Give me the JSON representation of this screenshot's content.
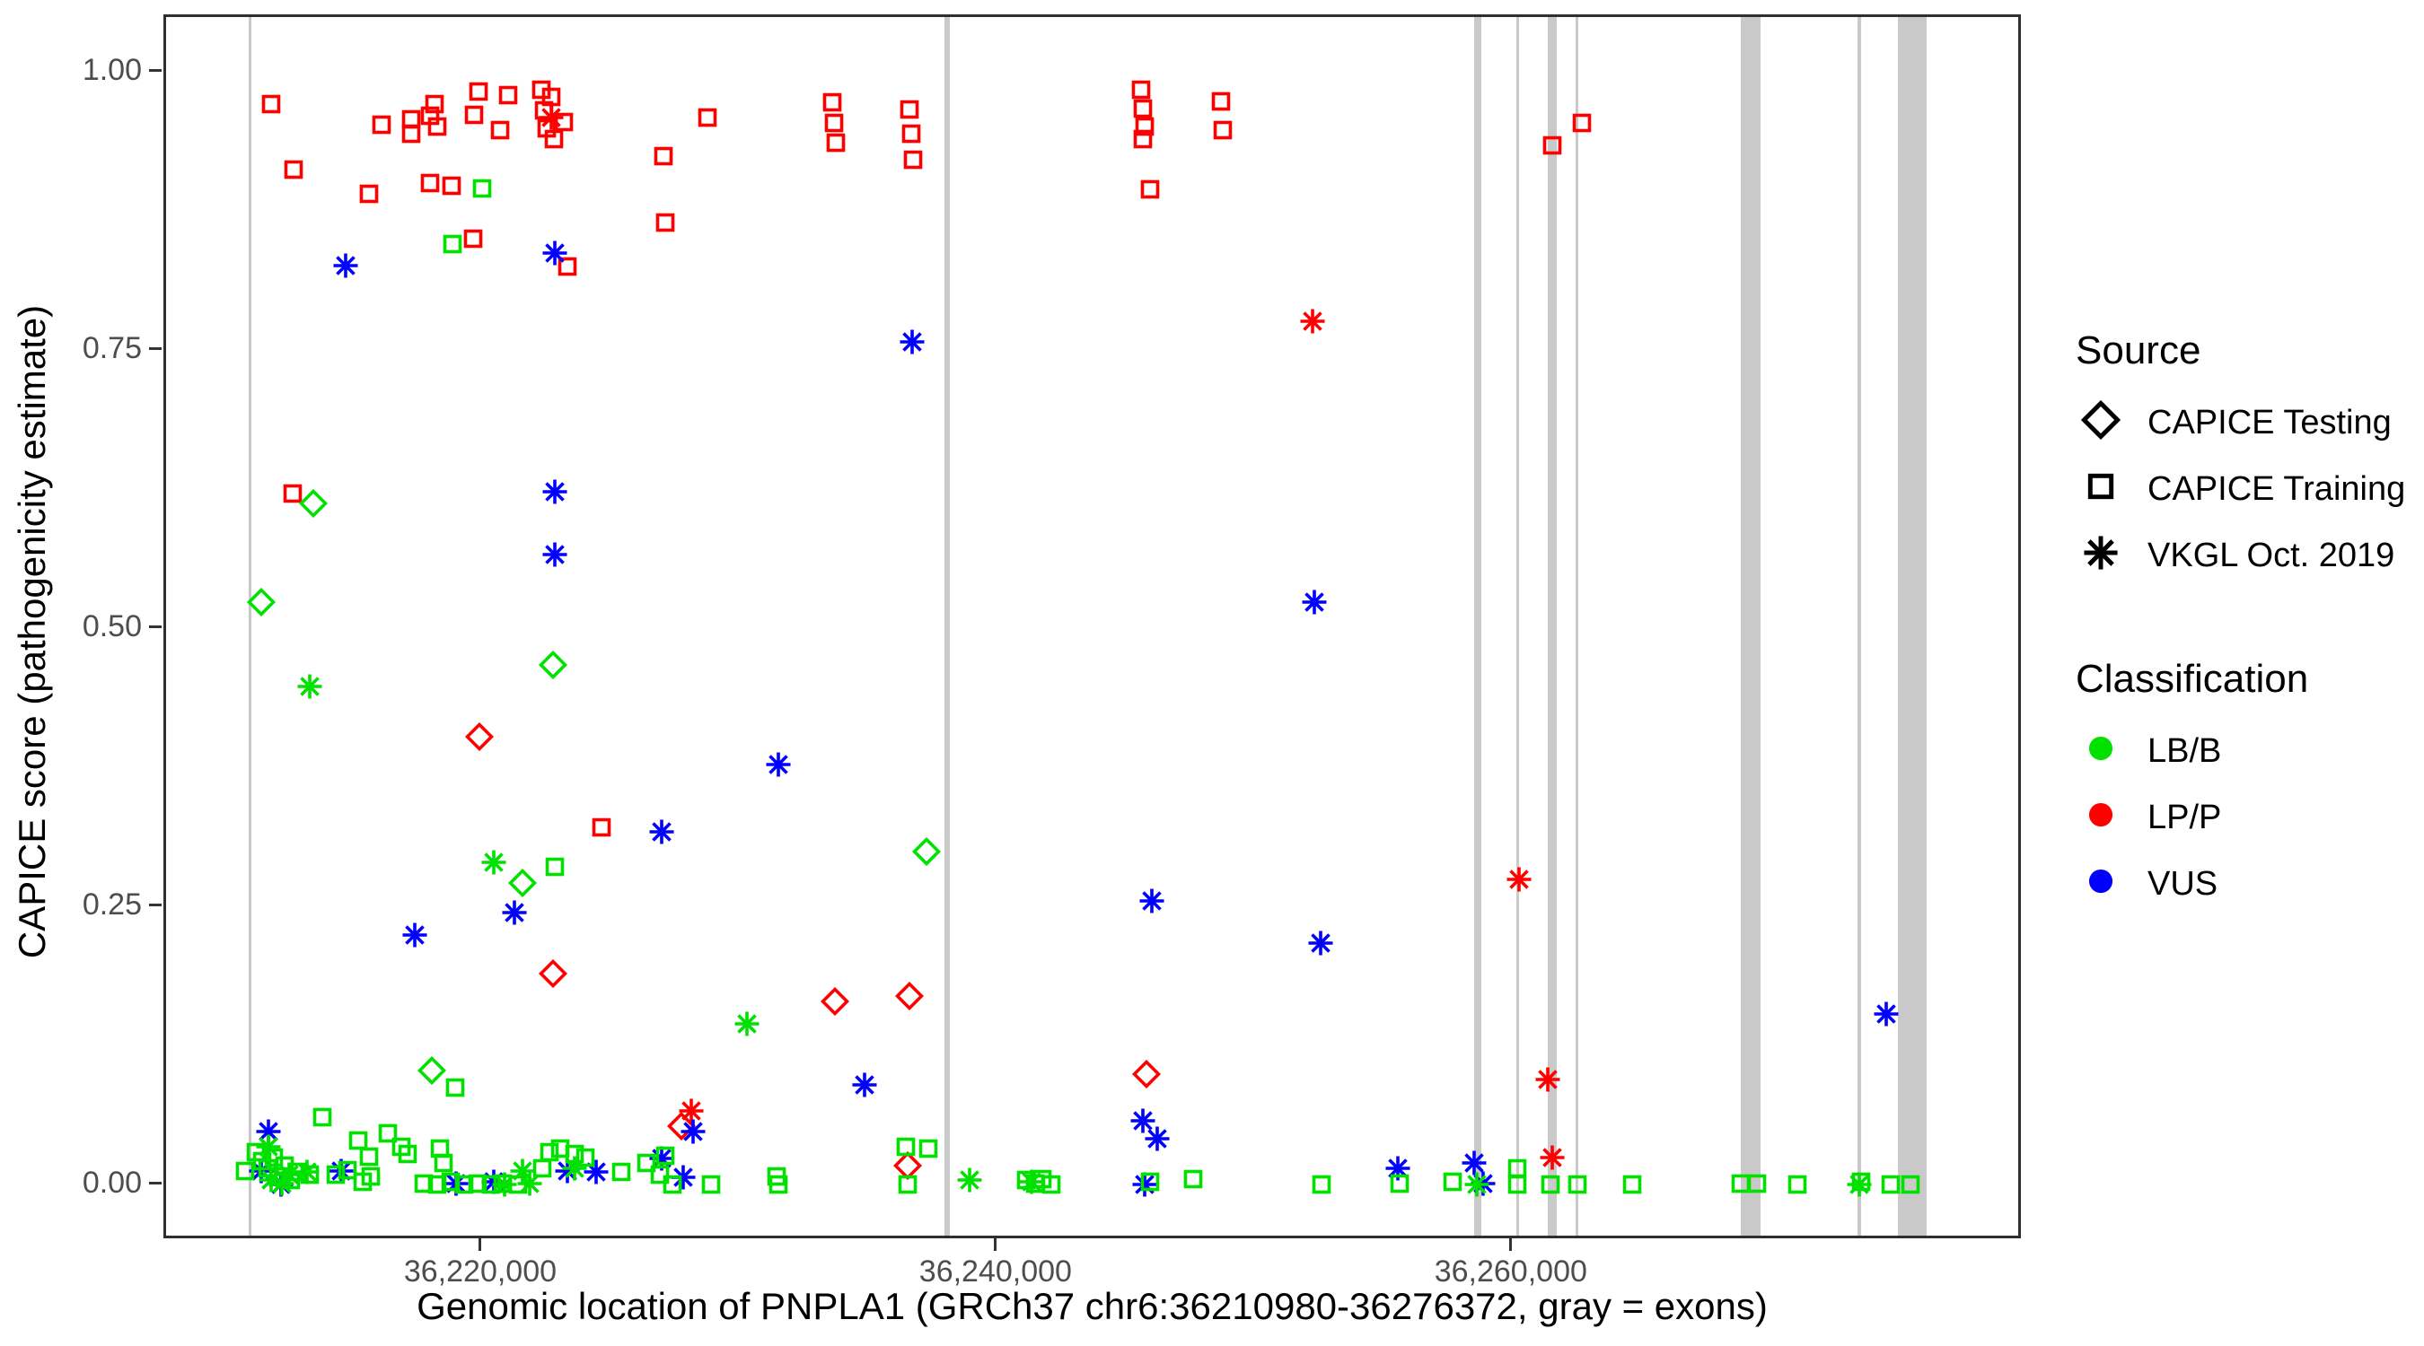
{
  "legend": {
    "source_title": "Source",
    "classification_title": "Classification"
  },
  "chart_data": {
    "type": "scatter",
    "title": "",
    "xlabel": "Genomic location of PNPLA1 (GRCh37 chr6:36210980-36276372, gray = exons)",
    "ylabel": "CAPICE score (pathogenicity estimate)",
    "grid": "off",
    "legend_position": "right",
    "x_range": [
      36207700,
      36279800
    ],
    "y_range": [
      0.0,
      1.0
    ],
    "y_expansion": 0.05,
    "x_ticks": [
      {
        "value": 36220000,
        "label": "36,220,000"
      },
      {
        "value": 36240000,
        "label": "36,240,000"
      },
      {
        "value": 36260000,
        "label": "36,260,000"
      }
    ],
    "y_ticks": [
      {
        "value": 1.0,
        "label": "1.00"
      },
      {
        "value": 0.75,
        "label": "0.75"
      },
      {
        "value": 0.5,
        "label": "0.50"
      },
      {
        "value": 0.25,
        "label": "0.25"
      },
      {
        "value": 0.0,
        "label": "0.00"
      }
    ],
    "sources": {
      "testing": {
        "label": "CAPICE Testing",
        "marker": "diamond"
      },
      "training": {
        "label": "CAPICE Training",
        "marker": "square"
      },
      "vkgl": {
        "label": "VKGL Oct. 2019",
        "marker": "asterisk"
      }
    },
    "classifications": {
      "lbb": {
        "label": "LB/B",
        "color": "#00e100"
      },
      "lpp": {
        "label": "LP/P",
        "color": "#ff0000"
      },
      "vus": {
        "label": "VUS",
        "color": "#0000ff"
      }
    },
    "exon_color": "#c9c9c9",
    "exons": [
      [
        36210950,
        36211060
      ],
      [
        36237950,
        36238160
      ],
      [
        36258540,
        36258820
      ],
      [
        36260160,
        36260260
      ],
      [
        36261400,
        36261740
      ],
      [
        36262470,
        36262570
      ],
      [
        36268870,
        36269630
      ],
      [
        36273420,
        36273530
      ],
      [
        36274980,
        36276100
      ]
    ],
    "points": [
      [
        36211790,
        0.972,
        "training",
        "lpp"
      ],
      [
        36212660,
        0.913,
        "training",
        "lpp"
      ],
      [
        36215580,
        0.891,
        "training",
        "lpp"
      ],
      [
        36216070,
        0.953,
        "training",
        "lpp"
      ],
      [
        36217220,
        0.958,
        "training",
        "lpp"
      ],
      [
        36217230,
        0.945,
        "training",
        "lpp"
      ],
      [
        36217950,
        0.961,
        "training",
        "lpp"
      ],
      [
        36218120,
        0.972,
        "training",
        "lpp"
      ],
      [
        36218230,
        0.952,
        "training",
        "lpp"
      ],
      [
        36219650,
        0.962,
        "training",
        "lpp"
      ],
      [
        36219830,
        0.983,
        "training",
        "lpp"
      ],
      [
        36220970,
        0.98,
        "training",
        "lpp"
      ],
      [
        36220660,
        0.948,
        "training",
        "lpp"
      ],
      [
        36222260,
        0.985,
        "training",
        "lpp"
      ],
      [
        36222640,
        0.978,
        "training",
        "lpp"
      ],
      [
        36222360,
        0.966,
        "training",
        "lpp"
      ],
      [
        36222470,
        0.95,
        "training",
        "lpp"
      ],
      [
        36223130,
        0.956,
        "training",
        "lpp"
      ],
      [
        36222750,
        0.94,
        "training",
        "lpp"
      ],
      [
        36217960,
        0.901,
        "training",
        "lpp"
      ],
      [
        36218780,
        0.898,
        "training",
        "lpp"
      ],
      [
        36219620,
        0.851,
        "training",
        "lpp"
      ],
      [
        36223270,
        0.826,
        "training",
        "lpp"
      ],
      [
        36226990,
        0.925,
        "training",
        "lpp"
      ],
      [
        36227060,
        0.865,
        "training",
        "lpp"
      ],
      [
        36228700,
        0.96,
        "training",
        "lpp"
      ],
      [
        36233560,
        0.973,
        "training",
        "lpp"
      ],
      [
        36233630,
        0.955,
        "training",
        "lpp"
      ],
      [
        36233700,
        0.937,
        "training",
        "lpp"
      ],
      [
        36236560,
        0.967,
        "training",
        "lpp"
      ],
      [
        36236620,
        0.945,
        "training",
        "lpp"
      ],
      [
        36236690,
        0.922,
        "training",
        "lpp"
      ],
      [
        36245530,
        0.985,
        "training",
        "lpp"
      ],
      [
        36245600,
        0.968,
        "training",
        "lpp"
      ],
      [
        36245670,
        0.952,
        "training",
        "lpp"
      ],
      [
        36245620,
        0.94,
        "training",
        "lpp"
      ],
      [
        36248660,
        0.974,
        "training",
        "lpp"
      ],
      [
        36248730,
        0.948,
        "training",
        "lpp"
      ],
      [
        36245880,
        0.895,
        "training",
        "lpp"
      ],
      [
        36261490,
        0.935,
        "training",
        "lpp"
      ],
      [
        36262640,
        0.955,
        "training",
        "lpp"
      ],
      [
        36212630,
        0.622,
        "training",
        "lpp"
      ],
      [
        36224590,
        0.322,
        "training",
        "lpp"
      ],
      [
        36219970,
        0.896,
        "training",
        "lbb"
      ],
      [
        36218820,
        0.846,
        "training",
        "lbb"
      ],
      [
        36222780,
        0.286,
        "training",
        "lbb"
      ],
      [
        36213430,
        0.613,
        "testing",
        "lbb"
      ],
      [
        36211410,
        0.524,
        "testing",
        "lbb"
      ],
      [
        36222710,
        0.468,
        "testing",
        "lbb"
      ],
      [
        36237220,
        0.3,
        "testing",
        "lbb"
      ],
      [
        36221530,
        0.272,
        "testing",
        "lbb"
      ],
      [
        36218020,
        0.103,
        "testing",
        "lbb"
      ],
      [
        36219860,
        0.403,
        "testing",
        "lpp"
      ],
      [
        36222710,
        0.19,
        "testing",
        "lpp"
      ],
      [
        36233670,
        0.165,
        "testing",
        "lpp"
      ],
      [
        36236560,
        0.17,
        "testing",
        "lpp"
      ],
      [
        36245770,
        0.1,
        "testing",
        "lpp"
      ],
      [
        36227690,
        0.053,
        "testing",
        "lpp"
      ],
      [
        36236490,
        0.018,
        "testing",
        "lpp"
      ],
      [
        36222640,
        0.96,
        "vkgl",
        "lpp"
      ],
      [
        36252210,
        0.777,
        "vkgl",
        "lpp"
      ],
      [
        36260210,
        0.275,
        "vkgl",
        "lpp"
      ],
      [
        36261320,
        0.095,
        "vkgl",
        "lpp"
      ],
      [
        36228070,
        0.067,
        "vkgl",
        "lpp"
      ],
      [
        36261490,
        0.025,
        "vkgl",
        "lpp"
      ],
      [
        36214680,
        0.827,
        "vkgl",
        "vus"
      ],
      [
        36222780,
        0.838,
        "vkgl",
        "vus"
      ],
      [
        36222780,
        0.623,
        "vkgl",
        "vus"
      ],
      [
        36222790,
        0.567,
        "vkgl",
        "vus"
      ],
      [
        36226920,
        0.318,
        "vkgl",
        "vus"
      ],
      [
        36231480,
        0.378,
        "vkgl",
        "vus"
      ],
      [
        36236660,
        0.758,
        "vkgl",
        "vus"
      ],
      [
        36252280,
        0.524,
        "vkgl",
        "vus"
      ],
      [
        36252520,
        0.218,
        "vkgl",
        "vus"
      ],
      [
        36245980,
        0.256,
        "vkgl",
        "vus"
      ],
      [
        36274470,
        0.154,
        "vkgl",
        "vus"
      ],
      [
        36234820,
        0.09,
        "vkgl",
        "vus"
      ],
      [
        36217360,
        0.225,
        "vkgl",
        "vus"
      ],
      [
        36221220,
        0.245,
        "vkgl",
        "vus"
      ],
      [
        36245600,
        0.058,
        "vkgl",
        "vus"
      ],
      [
        36246160,
        0.042,
        "vkgl",
        "vus"
      ],
      [
        36255510,
        0.015,
        "vkgl",
        "vus"
      ],
      [
        36258470,
        0.02,
        "vkgl",
        "vus"
      ],
      [
        36228170,
        0.048,
        "vkgl",
        "vus"
      ],
      [
        36227760,
        0.007,
        "vkgl",
        "vus"
      ],
      [
        36211680,
        0.048,
        "vkgl",
        "vus"
      ],
      [
        36211380,
        0.013,
        "vkgl",
        "vus"
      ],
      [
        36212170,
        0.001,
        "vkgl",
        "vus"
      ],
      [
        36214500,
        0.013,
        "vkgl",
        "vus"
      ],
      [
        36218960,
        0.002,
        "vkgl",
        "vus"
      ],
      [
        36220420,
        0.003,
        "vkgl",
        "vus"
      ],
      [
        36223270,
        0.013,
        "vkgl",
        "vus"
      ],
      [
        36224380,
        0.012,
        "vkgl",
        "vus"
      ],
      [
        36226920,
        0.024,
        "vkgl",
        "vus"
      ],
      [
        36245670,
        0.001,
        "vkgl",
        "vus"
      ],
      [
        36258820,
        0.002,
        "vkgl",
        "vus"
      ],
      [
        36213290,
        0.448,
        "vkgl",
        "lbb"
      ],
      [
        36220420,
        0.29,
        "vkgl",
        "lbb"
      ],
      [
        36230230,
        0.145,
        "vkgl",
        "lbb"
      ],
      [
        36211680,
        0.035,
        "vkgl",
        "lbb"
      ],
      [
        36211790,
        0.005,
        "vkgl",
        "lbb"
      ],
      [
        36212210,
        0.002,
        "vkgl",
        "lbb"
      ],
      [
        36212480,
        0.01,
        "vkgl",
        "lbb"
      ],
      [
        36213180,
        0.012,
        "vkgl",
        "lbb"
      ],
      [
        36221530,
        0.013,
        "vkgl",
        "lbb"
      ],
      [
        36223550,
        0.015,
        "vkgl",
        "lbb"
      ],
      [
        36220830,
        0.001,
        "vkgl",
        "lbb"
      ],
      [
        36221810,
        0.002,
        "vkgl",
        "lbb"
      ],
      [
        36238890,
        0.005,
        "vkgl",
        "lbb"
      ],
      [
        36241290,
        0.003,
        "vkgl",
        "lbb"
      ],
      [
        36258570,
        0.001,
        "vkgl",
        "lbb"
      ],
      [
        36273420,
        0.001,
        "vkgl",
        "lbb"
      ],
      [
        36213770,
        0.061,
        "training",
        "lbb"
      ],
      [
        36214300,
        0.01,
        "training",
        "lbb"
      ],
      [
        36216310,
        0.047,
        "training",
        "lbb"
      ],
      [
        36216840,
        0.035,
        "training",
        "lbb"
      ],
      [
        36217080,
        0.028,
        "training",
        "lbb"
      ],
      [
        36218330,
        0.033,
        "training",
        "lbb"
      ],
      [
        36218470,
        0.02,
        "training",
        "lbb"
      ],
      [
        36215580,
        0.026,
        "training",
        "lbb"
      ],
      [
        36218920,
        0.088,
        "training",
        "lbb"
      ],
      [
        36210750,
        0.013,
        "training",
        "lbb"
      ],
      [
        36211200,
        0.03,
        "training",
        "lbb"
      ],
      [
        36211440,
        0.022,
        "training",
        "lbb"
      ],
      [
        36211650,
        0.015,
        "training",
        "lbb"
      ],
      [
        36211890,
        0.025,
        "training",
        "lbb"
      ],
      [
        36212070,
        0.008,
        "training",
        "lbb"
      ],
      [
        36212310,
        0.018,
        "training",
        "lbb"
      ],
      [
        36212550,
        0.005,
        "training",
        "lbb"
      ],
      [
        36212830,
        0.012,
        "training",
        "lbb"
      ],
      [
        36213290,
        0.01,
        "training",
        "lbb"
      ],
      [
        36214740,
        0.014,
        "training",
        "lbb"
      ],
      [
        36215160,
        0.04,
        "training",
        "lbb"
      ],
      [
        36215340,
        0.003,
        "training",
        "lbb"
      ],
      [
        36215650,
        0.008,
        "training",
        "lbb"
      ],
      [
        36217700,
        0.002,
        "training",
        "lbb"
      ],
      [
        36218230,
        0.001,
        "training",
        "lbb"
      ],
      [
        36218750,
        0.003,
        "training",
        "lbb"
      ],
      [
        36219270,
        0.001,
        "training",
        "lbb"
      ],
      [
        36219790,
        0.002,
        "training",
        "lbb"
      ],
      [
        36220310,
        0.001,
        "training",
        "lbb"
      ],
      [
        36220770,
        0.002,
        "training",
        "lbb"
      ],
      [
        36221360,
        0.001,
        "training",
        "lbb"
      ],
      [
        36222300,
        0.015,
        "training",
        "lbb"
      ],
      [
        36222570,
        0.03,
        "training",
        "lbb"
      ],
      [
        36222990,
        0.033,
        "training",
        "lbb"
      ],
      [
        36223550,
        0.028,
        "training",
        "lbb"
      ],
      [
        36223960,
        0.025,
        "training",
        "lbb"
      ],
      [
        36225360,
        0.012,
        "training",
        "lbb"
      ],
      [
        36226330,
        0.02,
        "training",
        "lbb"
      ],
      [
        36226850,
        0.01,
        "training",
        "lbb"
      ],
      [
        36227060,
        0.027,
        "training",
        "lbb"
      ],
      [
        36227370,
        0.001,
        "training",
        "lbb"
      ],
      [
        36228870,
        0.001,
        "training",
        "lbb"
      ],
      [
        36231410,
        0.008,
        "training",
        "lbb"
      ],
      [
        36231480,
        0.001,
        "training",
        "lbb"
      ],
      [
        36236420,
        0.035,
        "training",
        "lbb"
      ],
      [
        36237290,
        0.033,
        "training",
        "lbb"
      ],
      [
        36236490,
        0.001,
        "training",
        "lbb"
      ],
      [
        36241080,
        0.005,
        "training",
        "lbb"
      ],
      [
        36241430,
        0.002,
        "training",
        "lbb"
      ],
      [
        36241710,
        0.006,
        "training",
        "lbb"
      ],
      [
        36242050,
        0.001,
        "training",
        "lbb"
      ],
      [
        36245910,
        0.003,
        "training",
        "lbb"
      ],
      [
        36247550,
        0.006,
        "training",
        "lbb"
      ],
      [
        36252560,
        0.001,
        "training",
        "lbb"
      ],
      [
        36255580,
        0.002,
        "training",
        "lbb"
      ],
      [
        36257630,
        0.003,
        "training",
        "lbb"
      ],
      [
        36260140,
        0.015,
        "training",
        "lbb"
      ],
      [
        36260140,
        0.001,
        "training",
        "lbb"
      ],
      [
        36261420,
        0.001,
        "training",
        "lbb"
      ],
      [
        36262470,
        0.001,
        "training",
        "lbb"
      ],
      [
        36264590,
        0.001,
        "training",
        "lbb"
      ],
      [
        36268830,
        0.002,
        "training",
        "lbb"
      ],
      [
        36269460,
        0.002,
        "training",
        "lbb"
      ],
      [
        36271020,
        0.001,
        "training",
        "lbb"
      ],
      [
        36273490,
        0.003,
        "training",
        "lbb"
      ],
      [
        36274640,
        0.001,
        "training",
        "lbb"
      ],
      [
        36275400,
        0.001,
        "training",
        "lbb"
      ]
    ]
  }
}
